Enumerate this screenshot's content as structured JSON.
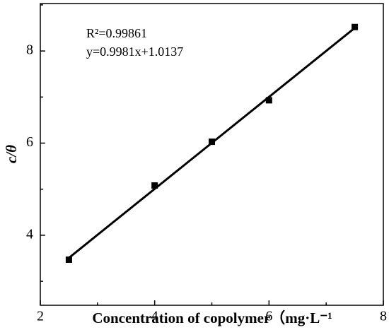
{
  "chart_data": {
    "type": "scatter",
    "x": [
      2.5,
      4,
      5,
      6,
      7.5
    ],
    "values": [
      3.47,
      5.08,
      6.03,
      6.93,
      8.52
    ],
    "color": "#000000",
    "fit": {
      "slope": 0.9981,
      "intercept": 1.0137
    },
    "annotations": [
      "R²=0.99861",
      "y=0.9981x+1.0137"
    ],
    "x_label": "Concentration of copolymer（mg·L⁻¹",
    "y_label": "c/θ",
    "xlim": [
      2,
      8
    ],
    "xticks": [
      2,
      4,
      6,
      8
    ],
    "x_minor_ticks": [
      3,
      5,
      7
    ],
    "ylim": [
      2.48,
      9.03
    ],
    "yticks": [
      4,
      6,
      8
    ],
    "y_minor_ticks": [
      3,
      5,
      7,
      9
    ]
  }
}
